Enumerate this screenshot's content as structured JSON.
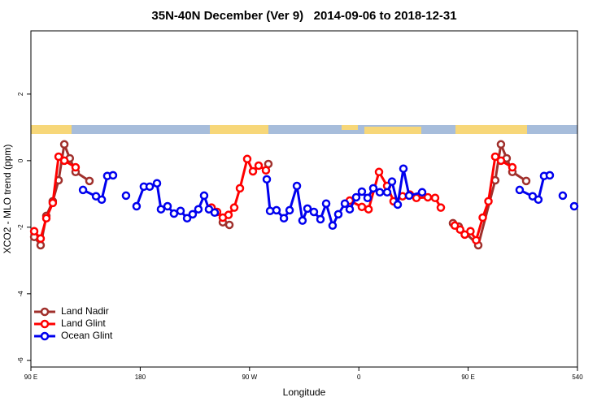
{
  "chart_data": {
    "type": "line",
    "title": "35N-40N December (Ver 9)   2014-09-06 to 2018-12-31",
    "x_label": "Longitude",
    "y_label": "XCO2 - MLO trend (ppm)",
    "xlim": [
      90,
      540
    ],
    "xticks": [
      {
        "value": 90,
        "label": "90 E"
      },
      180,
      {
        "value": 270,
        "label": "90 W"
      },
      {
        "value": 360,
        "label": "0"
      },
      {
        "value": 450,
        "label": "90 E"
      },
      540
    ],
    "ylim": [
      -6.2,
      3.9
    ],
    "yticks": [
      -6,
      -4,
      -2,
      0,
      2
    ],
    "legend": "bottom-left",
    "series": [
      {
        "name": "Land Nadir",
        "color": "#a0302c",
        "x": [
          92.7,
          98,
          102.7,
          108,
          112.8,
          117.5,
          122,
          126.8,
          138.2,
          null,
          248,
          253.4,
          null,
          285.5,
          null,
          437.5,
          442.2,
          458.3,
          472.3,
          477,
          481.7,
          486.4,
          497.8
        ],
        "values": [
          -2.29,
          -2.54,
          -1.66,
          -1.22,
          -0.59,
          0.49,
          0.07,
          -0.34,
          -0.61,
          null,
          -1.85,
          -1.93,
          null,
          -0.1,
          null,
          -1.88,
          -1.98,
          -2.54,
          -0.59,
          0.49,
          0.07,
          -0.34,
          -0.61
        ]
      },
      {
        "name": "Land Glint",
        "color": "#ff0000",
        "x": [
          92.7,
          98,
          102.7,
          108,
          112.8,
          117.5,
          126.8,
          null,
          238.7,
          243.3,
          248,
          252.7,
          257.4,
          262.1,
          268.1,
          272.8,
          277.5,
          283.5,
          null,
          352.5,
          362.5,
          368,
          376.6,
          383.3,
          388.6,
          396,
          402,
          407.4,
          416.8,
          422.8,
          427.5,
          null,
          439,
          443.4,
          447.2,
          451.9,
          456.6,
          462,
          466.7,
          472.3,
          477,
          486.4
        ],
        "values": [
          -2.12,
          -2.34,
          -1.73,
          -1.27,
          0.12,
          0,
          -0.2,
          null,
          -1.41,
          -1.54,
          -1.71,
          -1.63,
          -1.41,
          -0.83,
          0.05,
          -0.32,
          -0.15,
          -0.29,
          null,
          -1.2,
          -1.39,
          -1.46,
          -0.34,
          -0.76,
          -1.22,
          -1.07,
          -1.02,
          -1.12,
          -1.1,
          -1.12,
          -1.41,
          null,
          -1.95,
          -2.07,
          -2.22,
          -2.12,
          -2.39,
          -1.71,
          -1.22,
          0.12,
          0,
          -0.2
        ]
      },
      {
        "name": "Ocean Glint",
        "color": "#0000ee",
        "x": [
          132.9,
          143.6,
          148.3,
          152.9,
          157.6,
          null,
          168.3,
          null,
          177,
          183,
          187.8,
          193.8,
          197.1,
          202.5,
          207.8,
          213.2,
          218.6,
          223.2,
          227.9,
          232.6,
          236.6,
          241.3,
          null,
          284.2,
          286.9,
          292.2,
          298.3,
          303,
          309,
          313.6,
          317.7,
          323,
          328.4,
          333.1,
          338.4,
          343.1,
          348.5,
          352.5,
          357.8,
          362.5,
          367.2,
          371.9,
          377.3,
          383.3,
          387.3,
          392,
          396.7,
          401.4,
          412.1,
          null,
          492.4,
          503.1,
          507.8,
          512.5,
          517.2,
          null,
          527.9,
          null,
          537.3
        ],
        "values": [
          -0.88,
          -1.07,
          -1.17,
          -0.46,
          -0.44,
          null,
          -1.05,
          null,
          -1.37,
          -0.78,
          -0.78,
          -0.68,
          -1.46,
          -1.37,
          -1.59,
          -1.51,
          -1.73,
          -1.61,
          -1.46,
          -1.05,
          -1.46,
          -1.56,
          null,
          -0.56,
          -1.51,
          -1.49,
          -1.73,
          -1.49,
          -0.76,
          -1.8,
          -1.44,
          -1.54,
          -1.76,
          -1.29,
          -1.95,
          -1.61,
          -1.29,
          -1.46,
          -1.1,
          -0.93,
          -1.12,
          -0.83,
          -0.95,
          -0.95,
          -0.63,
          -1.32,
          -0.24,
          -1.05,
          -0.95,
          null,
          -0.88,
          -1.07,
          -1.17,
          -0.46,
          -0.44,
          null,
          -1.05,
          null,
          -1.37
        ]
      }
    ]
  }
}
